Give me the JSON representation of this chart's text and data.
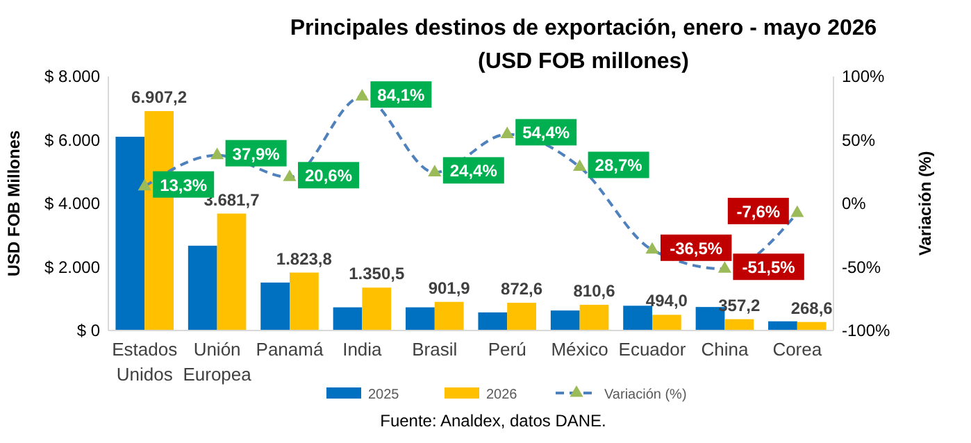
{
  "chart_data": {
    "type": "bar",
    "title": "Principales destinos de exportación, enero - mayo 2026",
    "subtitle": "(USD FOB millones)",
    "ylabel": "USD FOB Millones",
    "y2label": "Variación (%)",
    "categories": [
      "Estados Unidos",
      "Unión Europea",
      "Panamá",
      "India",
      "Brasil",
      "Perú",
      "México",
      "Ecuador",
      "China",
      "Corea"
    ],
    "series": [
      {
        "name": "2025",
        "color": "#0070c0",
        "values": [
          6100,
          2670,
          1510,
          730,
          730,
          570,
          630,
          780,
          740,
          290
        ]
      },
      {
        "name": "2026",
        "color": "#ffc000",
        "values": [
          6907.2,
          3681.7,
          1823.8,
          1350.5,
          901.9,
          872.6,
          810.6,
          494.0,
          357.2,
          268.6
        ],
        "value_labels": [
          "6.907,2",
          "3.681,7",
          "1.823,8",
          "1.350,5",
          "901,9",
          "872,6",
          "810,6",
          "494,0",
          "357,2",
          "268,6"
        ]
      },
      {
        "name": "Variación (%)",
        "type": "line",
        "axis": "y2",
        "color": "#4f81bd",
        "line_style": "dashed",
        "marker": "triangle",
        "values": [
          13.3,
          37.9,
          20.6,
          84.1,
          24.4,
          54.4,
          28.7,
          -36.5,
          -51.5,
          -7.6
        ],
        "value_labels": [
          "13,3%",
          "37,9%",
          "20,6%",
          "84,1%",
          "24,4%",
          "54,4%",
          "28,7%",
          "-36,5%",
          "-51,5%",
          "-7,6%"
        ]
      }
    ],
    "ylim": [
      0,
      8000
    ],
    "yticks": [
      {
        "value": 0,
        "label": "$ 0"
      },
      {
        "value": 2000,
        "label": "$ 2.000"
      },
      {
        "value": 4000,
        "label": "$ 4.000"
      },
      {
        "value": 6000,
        "label": "$ 6.000"
      },
      {
        "value": 8000,
        "label": "$ 8.000"
      }
    ],
    "y2lim": [
      -100,
      100
    ],
    "y2ticks": [
      {
        "value": -100,
        "label": "-100%"
      },
      {
        "value": -50,
        "label": "-50%"
      },
      {
        "value": 0,
        "label": "0%"
      },
      {
        "value": 50,
        "label": "50%"
      },
      {
        "value": 100,
        "label": "100%"
      }
    ],
    "legend": "bottom",
    "grid": false,
    "annotations": [
      "Fuente: Analdex, datos DANE."
    ]
  }
}
